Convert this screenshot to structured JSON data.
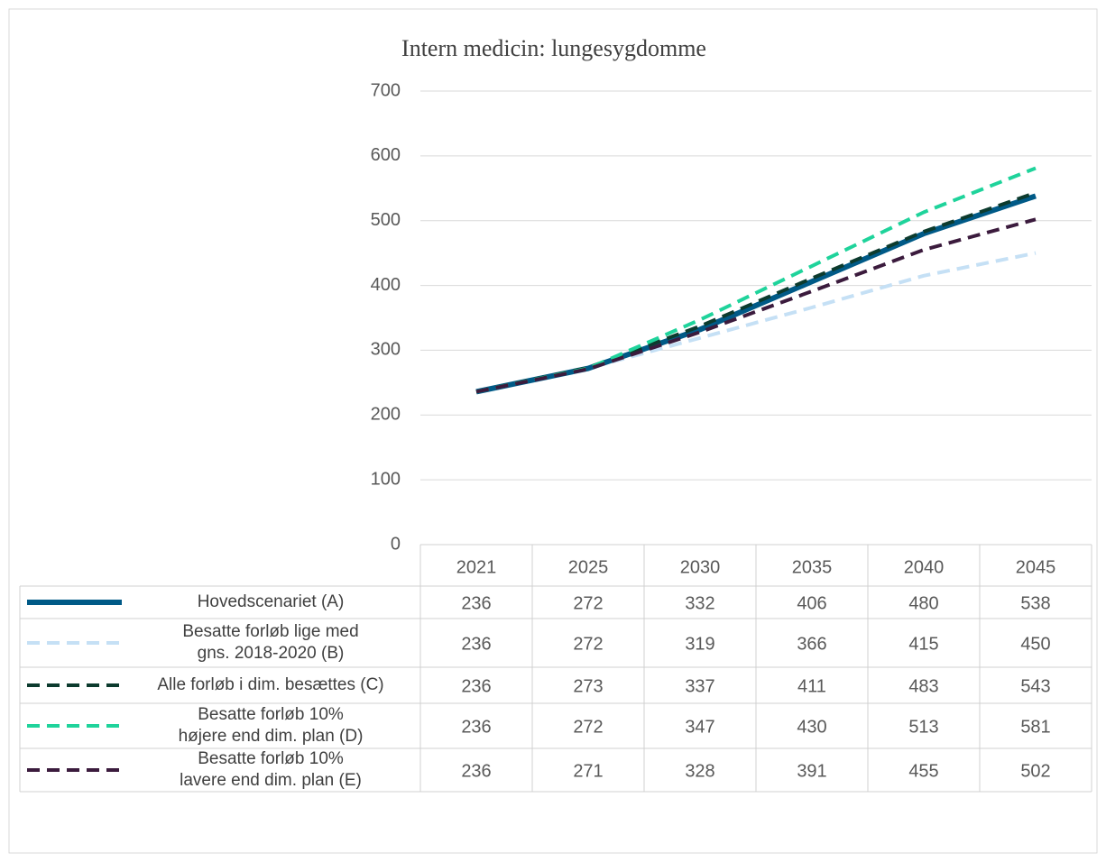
{
  "chart_data": {
    "type": "line",
    "title": "Intern medicin: lungesygdomme",
    "categories": [
      "2021",
      "2025",
      "2030",
      "2035",
      "2040",
      "2045"
    ],
    "series": [
      {
        "name": "Hovedscenariet (A)",
        "color": "#005a87",
        "dash": false,
        "values": [
          236,
          272,
          332,
          406,
          480,
          538
        ]
      },
      {
        "name": "Besatte forløb lige med gns. 2018-2020 (B)",
        "color": "#c5e0f5",
        "dash": true,
        "values": [
          236,
          272,
          319,
          366,
          415,
          450
        ]
      },
      {
        "name": "Alle forløb i dim. besættes (C)",
        "color": "#0c3b2e",
        "dash": true,
        "values": [
          236,
          273,
          337,
          411,
          483,
          543
        ]
      },
      {
        "name": "Besatte forløb 10% højere end dim. plan (D)",
        "color": "#1fd39b",
        "dash": true,
        "values": [
          236,
          272,
          347,
          430,
          513,
          581
        ]
      },
      {
        "name": "Besatte forløb 10% lavere end dim. plan (E)",
        "color": "#3b1b3d",
        "dash": true,
        "values": [
          236,
          271,
          328,
          391,
          455,
          502
        ]
      }
    ],
    "ylim": [
      0,
      700
    ],
    "yticks": [
      0,
      100,
      200,
      300,
      400,
      500,
      600,
      700
    ],
    "grid": true,
    "data_table": true
  }
}
